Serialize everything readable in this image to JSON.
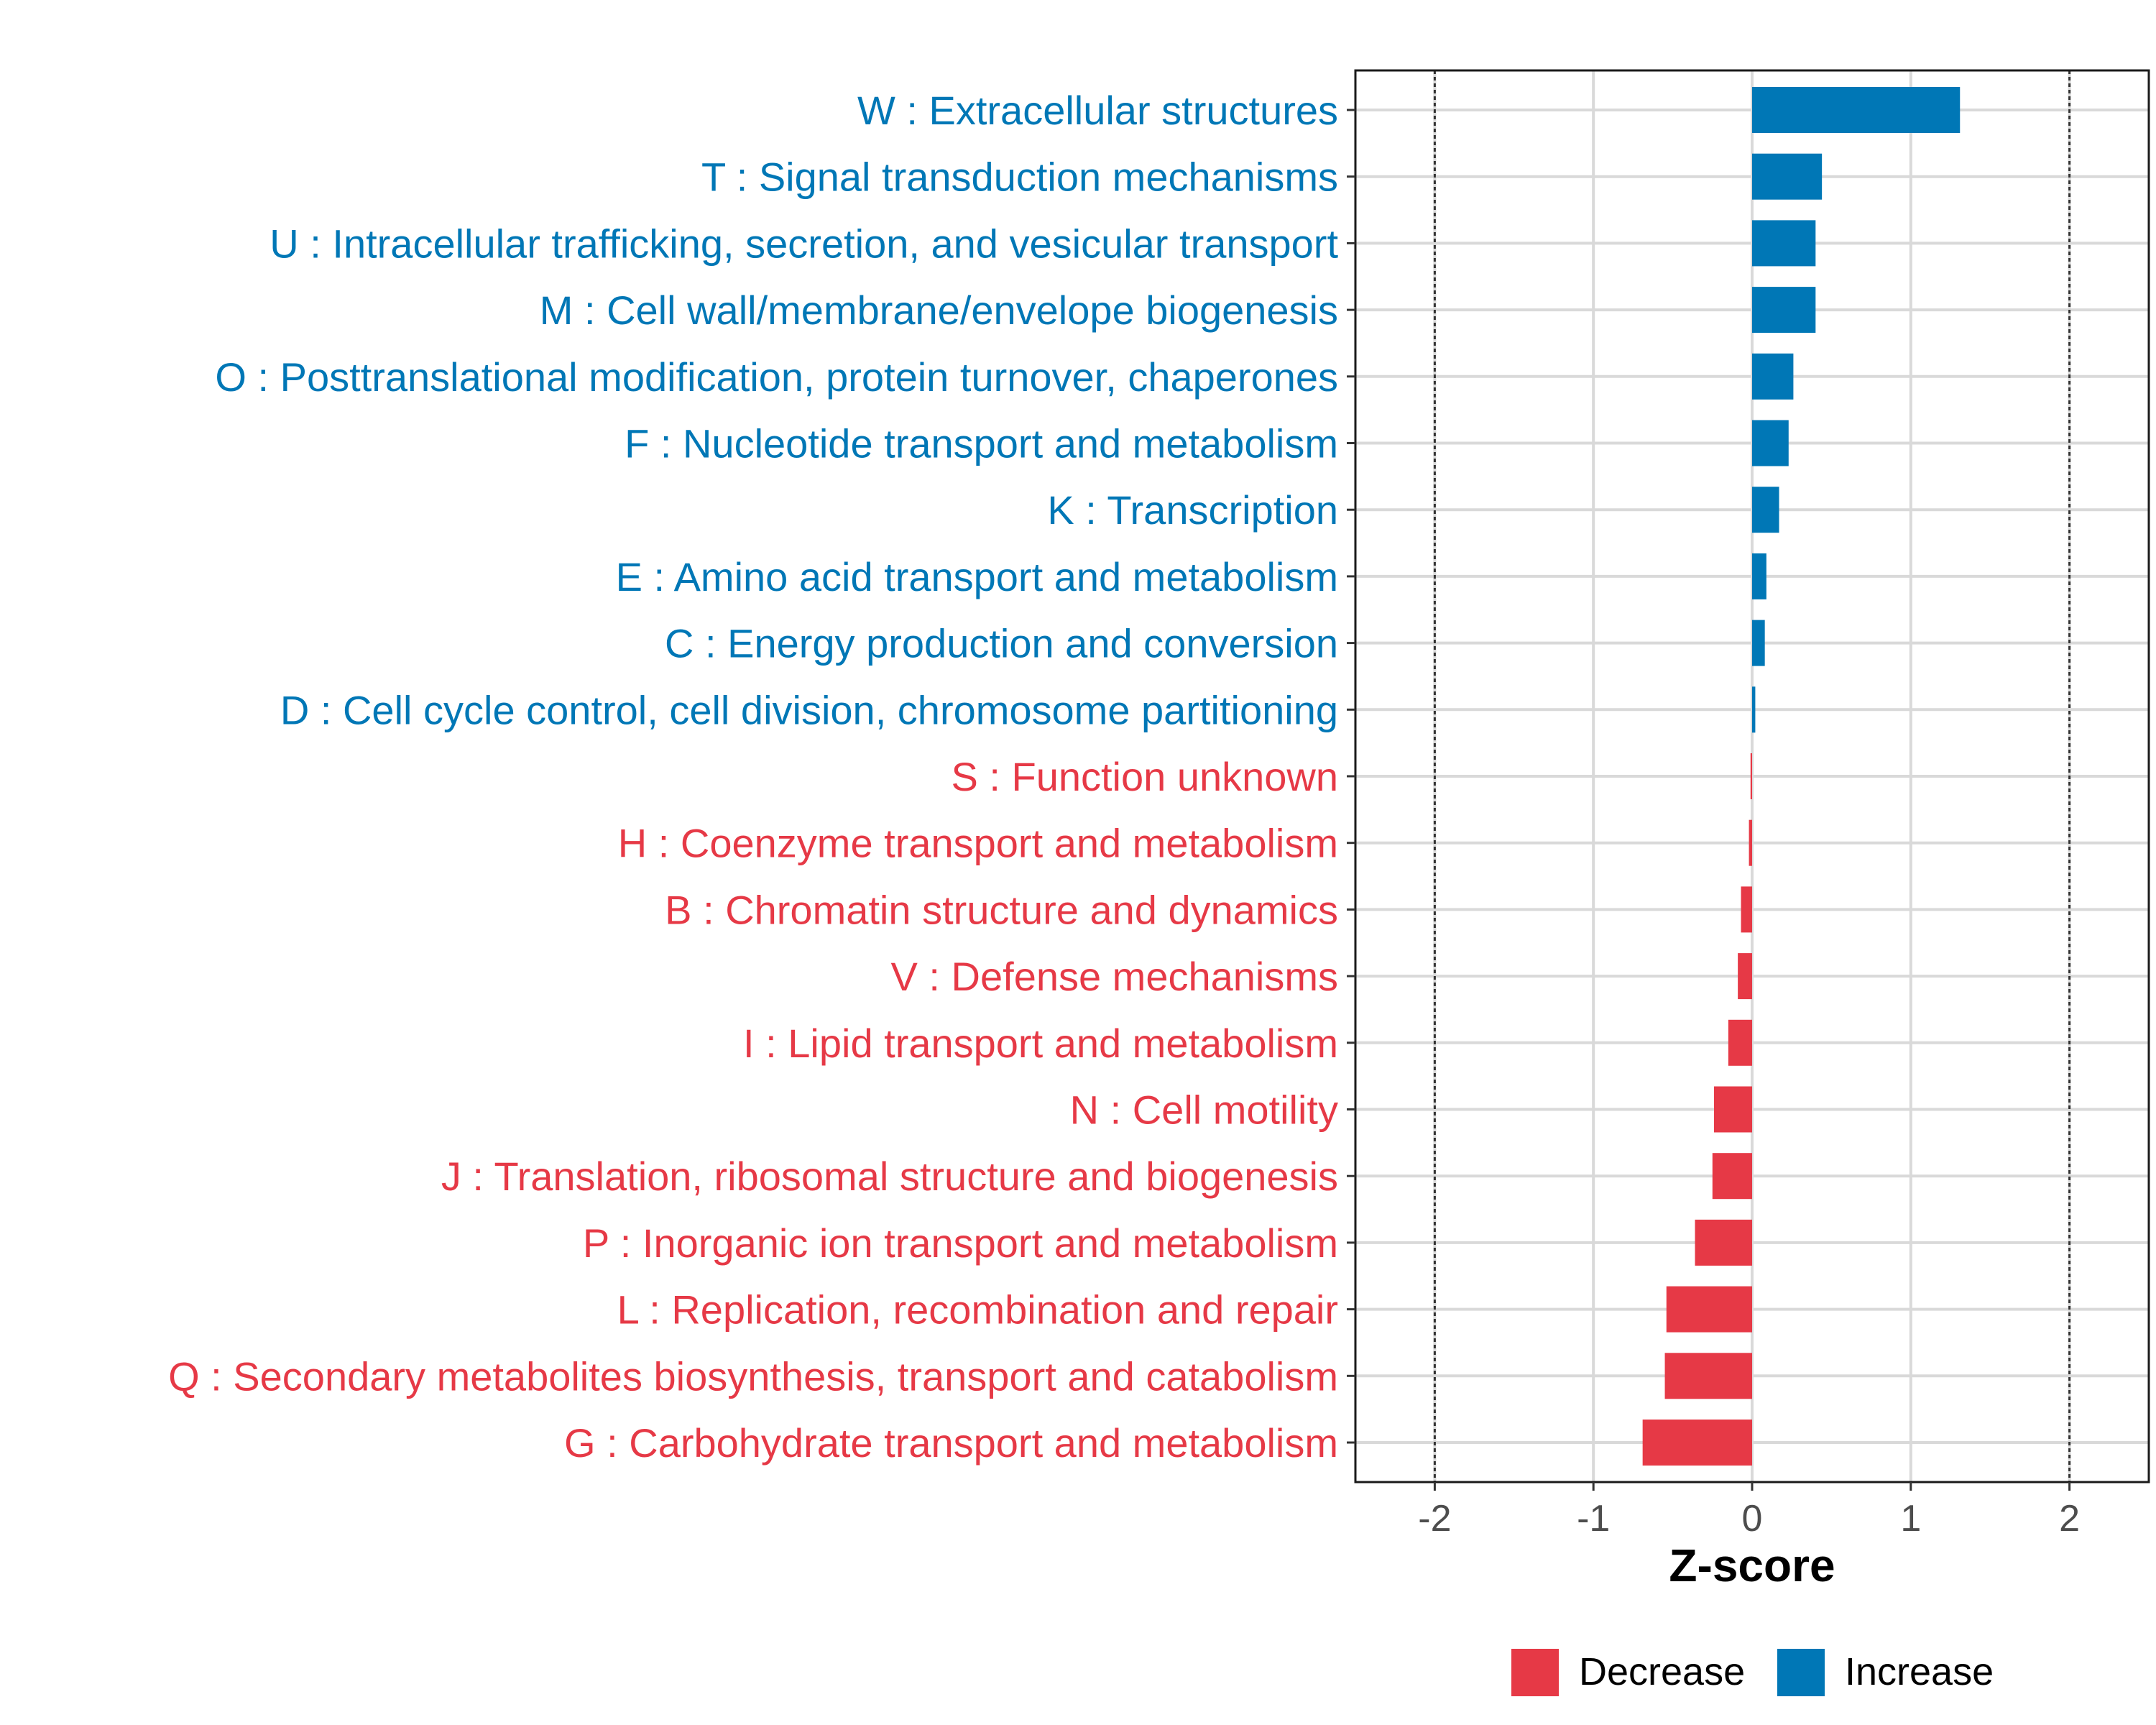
{
  "chart_data": {
    "type": "bar",
    "orientation": "horizontal",
    "xlabel": "Z-score",
    "ylabel": "",
    "xlim": [
      -2.5,
      2.5
    ],
    "xticks": [
      -2,
      -1,
      0,
      1,
      2
    ],
    "xtick_labels": [
      "-2",
      "-1",
      "0",
      "1",
      "2"
    ],
    "reference_lines": [
      -2,
      2
    ],
    "grid": true,
    "colors": {
      "Decrease": "#e63946",
      "Increase": "#0077b6"
    },
    "legend": {
      "position": "bottom-right",
      "entries": [
        {
          "label": "Decrease",
          "color": "#e63946"
        },
        {
          "label": "Increase",
          "color": "#0077b6"
        }
      ]
    },
    "categories": [
      "W : Extracellular structures",
      "T : Signal transduction mechanisms",
      "U : Intracellular trafficking, secretion, and vesicular transport",
      "M : Cell wall/membrane/envelope biogenesis",
      "O : Posttranslational modification, protein turnover, chaperones",
      "F : Nucleotide transport and metabolism",
      "K : Transcription",
      "E : Amino acid transport and metabolism",
      "C : Energy production and conversion",
      "D : Cell cycle control, cell division, chromosome partitioning",
      "S : Function unknown",
      "H : Coenzyme transport and metabolism",
      "B : Chromatin structure and dynamics",
      "V : Defense mechanisms",
      "I : Lipid transport and metabolism",
      "N : Cell motility",
      "J : Translation, ribosomal structure and biogenesis",
      "P : Inorganic ion transport and metabolism",
      "L : Replication, recombination and repair",
      "Q : Secondary metabolites biosynthesis, transport and catabolism",
      "G : Carbohydrate transport and metabolism"
    ],
    "values": [
      1.31,
      0.44,
      0.4,
      0.4,
      0.26,
      0.23,
      0.17,
      0.09,
      0.08,
      0.02,
      -0.01,
      -0.02,
      -0.07,
      -0.09,
      -0.15,
      -0.24,
      -0.25,
      -0.36,
      -0.54,
      -0.55,
      -0.69
    ],
    "groups": [
      "Increase",
      "Increase",
      "Increase",
      "Increase",
      "Increase",
      "Increase",
      "Increase",
      "Increase",
      "Increase",
      "Increase",
      "Decrease",
      "Decrease",
      "Decrease",
      "Decrease",
      "Decrease",
      "Decrease",
      "Decrease",
      "Decrease",
      "Decrease",
      "Decrease",
      "Decrease"
    ]
  }
}
